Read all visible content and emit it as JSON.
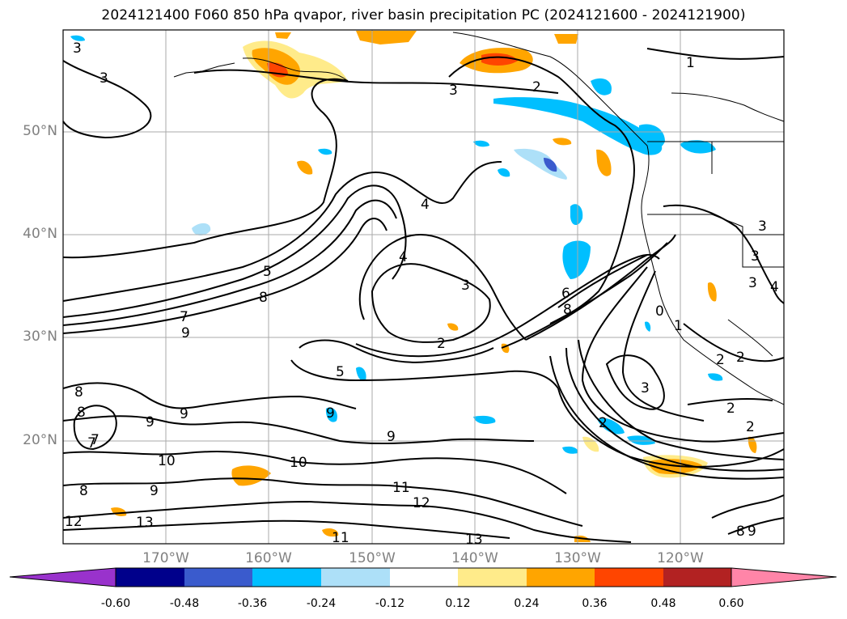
{
  "title": "2024121400 F060 850 hPa qvapor, river basin precipitation PC (2024121600 - 2024121900)",
  "lat_labels": [
    "50°N",
    "40°N",
    "30°N",
    "20°N"
  ],
  "lon_labels": [
    "170°W",
    "160°W",
    "150°W",
    "140°W",
    "130°W",
    "120°W"
  ],
  "colorbar": {
    "ticks": [
      "-0.60",
      "-0.48",
      "-0.36",
      "-0.24",
      "-0.12",
      "0.12",
      "0.24",
      "0.36",
      "0.48",
      "0.60"
    ],
    "colors": [
      "#9932CC",
      "#00008B",
      "#3A5BCD",
      "#00BFFF",
      "#ADE0F8",
      "#FFFFFF",
      "#FFEB8A",
      "#FFA500",
      "#FF4500",
      "#B22222",
      "#FF85A8"
    ]
  },
  "contour_labels": [
    "1",
    "2",
    "3",
    "2",
    "3",
    "3",
    "4",
    "4",
    "3",
    "5",
    "8",
    "7",
    "9",
    "2",
    "5",
    "6",
    "8",
    "0",
    "1",
    "2",
    "2",
    "2",
    "3",
    "8",
    "8",
    "7",
    "9",
    "9",
    "9",
    "10",
    "9",
    "10",
    "11",
    "12",
    "12",
    "13",
    "13",
    "11",
    "8",
    "9",
    "3",
    "3",
    "4",
    "3",
    "2"
  ],
  "colors": {
    "positive_fill": "#FFA500",
    "strong_positive_fill": "#FF4500",
    "negative_fill": "#00BFFF",
    "weak_negative_fill": "#ADE0F8",
    "weak_positive_fill": "#FFEB8A",
    "gridline": "#AAAAAA",
    "axis_label": "#808080"
  }
}
